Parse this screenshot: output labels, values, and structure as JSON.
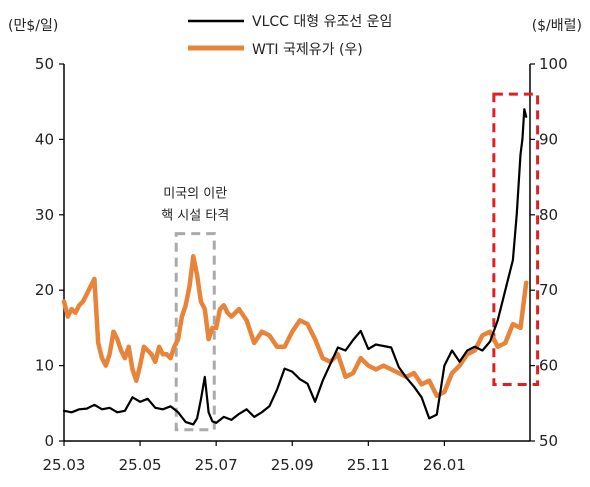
{
  "chart_data": {
    "type": "line",
    "left_axis_unit": "(만$/일)",
    "right_axis_unit": "($/배럴)",
    "left_ylim": [
      0,
      50
    ],
    "left_ticks": [
      "0",
      "10",
      "20",
      "30",
      "40",
      "50"
    ],
    "right_ylim": [
      50,
      100
    ],
    "right_ticks": [
      "50",
      "60",
      "70",
      "80",
      "90",
      "100"
    ],
    "x_ticks": [
      "25.03",
      "25.05",
      "25.07",
      "25.09",
      "25.11",
      "26.01"
    ],
    "x_tick_months": [
      0,
      2,
      4,
      6,
      8,
      10
    ],
    "x_range_months": [
      0,
      12.25
    ],
    "grid": false,
    "legend_position": "top-center",
    "series": [
      {
        "name": "VLCC 대형 유조선 운임",
        "axis": "left",
        "color": "#000000",
        "x": [
          0,
          0.2,
          0.4,
          0.6,
          0.8,
          1.0,
          1.2,
          1.4,
          1.6,
          1.8,
          2.0,
          2.2,
          2.4,
          2.6,
          2.8,
          3.0,
          3.2,
          3.4,
          3.5,
          3.6,
          3.7,
          3.8,
          3.9,
          4.0,
          4.2,
          4.4,
          4.6,
          4.8,
          5.0,
          5.2,
          5.4,
          5.6,
          5.8,
          6.0,
          6.2,
          6.4,
          6.6,
          6.8,
          7.0,
          7.2,
          7.4,
          7.6,
          7.8,
          8.0,
          8.2,
          8.4,
          8.6,
          8.8,
          9.0,
          9.2,
          9.4,
          9.6,
          9.8,
          10.0,
          10.2,
          10.4,
          10.6,
          10.8,
          11.0,
          11.2,
          11.4,
          11.6,
          11.8,
          11.9,
          12.0,
          12.05,
          12.1,
          12.15
        ],
        "values": [
          4,
          3.8,
          4.2,
          4.3,
          4.8,
          4.2,
          4.4,
          3.8,
          4.0,
          5.8,
          5.2,
          5.6,
          4.4,
          4.2,
          4.6,
          3.8,
          2.5,
          2.2,
          3.0,
          5.5,
          8.5,
          3.8,
          2.6,
          2.4,
          3.2,
          2.8,
          3.6,
          4.2,
          3.2,
          3.8,
          4.6,
          6.8,
          9.6,
          9.2,
          8.2,
          7.6,
          5.2,
          8.0,
          10.2,
          12.4,
          12.0,
          13.4,
          14.6,
          12.2,
          12.8,
          12.6,
          12.4,
          9.8,
          8.4,
          7.2,
          5.8,
          3.0,
          3.5,
          10.0,
          12.0,
          10.5,
          12.0,
          12.5,
          12.0,
          13.2,
          16.0,
          20.0,
          24.0,
          30.0,
          38.0,
          40.0,
          44.0,
          43.0
        ]
      },
      {
        "name": "WTI 국제유가 (우)",
        "axis": "right",
        "color": "#E8843A",
        "x": [
          0,
          0.1,
          0.2,
          0.3,
          0.4,
          0.5,
          0.6,
          0.7,
          0.8,
          0.9,
          1.0,
          1.1,
          1.2,
          1.3,
          1.4,
          1.5,
          1.6,
          1.7,
          1.8,
          1.9,
          2.0,
          2.1,
          2.2,
          2.3,
          2.4,
          2.5,
          2.6,
          2.7,
          2.8,
          2.9,
          3.0,
          3.1,
          3.2,
          3.3,
          3.4,
          3.5,
          3.6,
          3.7,
          3.8,
          3.9,
          4.0,
          4.1,
          4.2,
          4.3,
          4.4,
          4.6,
          4.8,
          5.0,
          5.2,
          5.4,
          5.6,
          5.8,
          6.0,
          6.2,
          6.4,
          6.6,
          6.8,
          7.0,
          7.2,
          7.4,
          7.6,
          7.8,
          8.0,
          8.2,
          8.4,
          8.6,
          8.8,
          9.0,
          9.2,
          9.4,
          9.6,
          9.8,
          10.0,
          10.2,
          10.4,
          10.6,
          10.8,
          11.0,
          11.2,
          11.4,
          11.6,
          11.8,
          12.0,
          12.15
        ],
        "values": [
          68.5,
          66.5,
          67.5,
          67,
          68,
          68.5,
          69.5,
          70.5,
          71.5,
          63,
          61,
          60,
          61.5,
          64.5,
          63.5,
          62,
          61,
          62.5,
          59.5,
          58,
          60,
          62.5,
          62,
          61.5,
          60.5,
          62.5,
          61.5,
          61.5,
          61,
          62.5,
          63.5,
          66.5,
          68,
          70.5,
          74.5,
          72,
          68.5,
          67.5,
          63.5,
          65,
          65,
          67.5,
          68,
          67,
          66.5,
          67.5,
          66,
          63,
          64.5,
          64,
          62.5,
          62.5,
          64.5,
          66,
          65.5,
          63.5,
          61,
          60.5,
          61.5,
          58.5,
          59,
          61,
          60,
          59.5,
          60,
          59.5,
          59,
          58.5,
          59,
          57.5,
          58,
          56,
          56.5,
          59,
          60,
          61.5,
          62,
          64,
          64.5,
          62.5,
          63,
          65.5,
          65,
          71
        ]
      }
    ],
    "annotations": [
      {
        "lines": [
          "미국의 이란",
          "핵 시설 타격"
        ],
        "box_x_months": [
          2.95,
          3.95
        ],
        "box_left_y": [
          1.5,
          27.5
        ],
        "color": "#AAAAAA",
        "style": "dashed"
      },
      {
        "lines": [],
        "box_x_months": [
          11.3,
          12.45
        ],
        "box_left_y": [
          7.5,
          46
        ],
        "color": "#E02020",
        "style": "dashed"
      }
    ]
  }
}
